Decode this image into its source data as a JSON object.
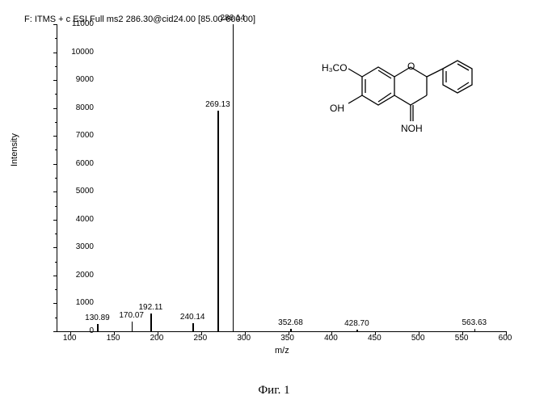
{
  "header": "F: ITMS + c ESI Full ms2 286.30@cid24.00 [85.00-600.00]",
  "caption": "Фиг. 1",
  "chart": {
    "type": "mass-spectrum",
    "xlabel": "m/z",
    "ylabel": "Intensity",
    "xlim": [
      85,
      600
    ],
    "ylim": [
      0,
      11000
    ],
    "ytick_step": 1000,
    "xtick_step": 50,
    "xtick_start": 100,
    "background_color": "#ffffff",
    "axis_color": "#000000",
    "peak_color": "#000000",
    "label_fontsize": 10,
    "peaks": [
      {
        "mz": 130.89,
        "intensity": 250,
        "label": "130.89"
      },
      {
        "mz": 170.07,
        "intensity": 350,
        "label": "170.07"
      },
      {
        "mz": 192.11,
        "intensity": 650,
        "label": "192.11"
      },
      {
        "mz": 240.14,
        "intensity": 300,
        "label": "240.14"
      },
      {
        "mz": 269.13,
        "intensity": 7900,
        "label": "269.13"
      },
      {
        "mz": 286.14,
        "intensity": 11000,
        "label": "286.14"
      },
      {
        "mz": 352.68,
        "intensity": 80,
        "label": "352.68"
      },
      {
        "mz": 428.7,
        "intensity": 70,
        "label": "428.70"
      },
      {
        "mz": 563.63,
        "intensity": 90,
        "label": "563.63"
      }
    ]
  },
  "molecule": {
    "groups": [
      "H₃CO",
      "OH",
      "NOH"
    ],
    "description": "flavanone-oxime"
  }
}
